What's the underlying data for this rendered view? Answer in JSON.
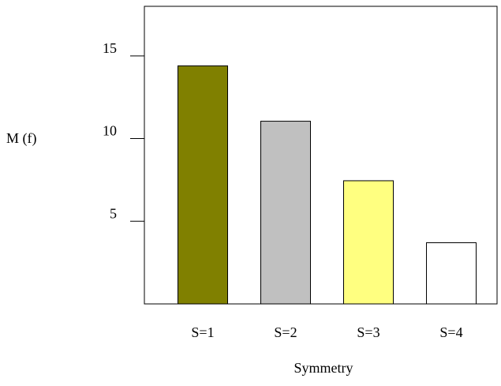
{
  "chart_data": {
    "type": "bar",
    "title": "",
    "xlabel": "Symmetry",
    "ylabel": "M (f)",
    "categories": [
      "S=1",
      "S=2",
      "S=3",
      "S=4"
    ],
    "values": [
      14.4,
      11.05,
      7.45,
      3.7
    ],
    "bar_colors": [
      "#808000",
      "#c0c0c0",
      "#ffff80",
      "#ffffff"
    ],
    "ylim": [
      0,
      18
    ],
    "yticks": [
      5,
      10,
      15
    ],
    "ytick_labels": [
      "5",
      "10",
      "15"
    ],
    "grid": false,
    "legend": false
  }
}
